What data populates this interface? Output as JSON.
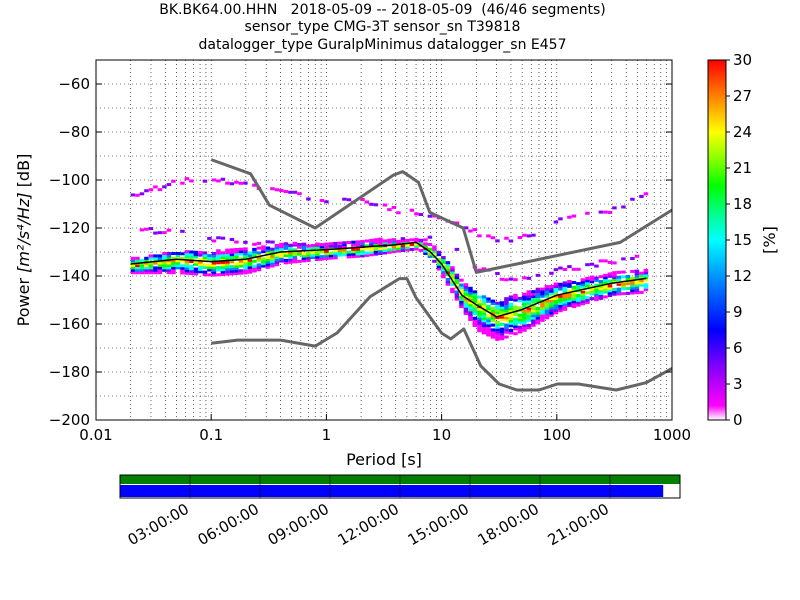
{
  "title": {
    "line1": "BK.BK64.00.HHN   2018-05-09 -- 2018-05-09  (46/46 segments)",
    "line2": "sensor_type CMG-3T sensor_sn T39818",
    "line3": "datalogger_type GuralpMinimus datalogger_sn E457"
  },
  "chart_data": {
    "type": "heatmap",
    "xlabel": "Period [s]",
    "xscale": "log",
    "xlim": [
      0.01,
      1000
    ],
    "xticks": [
      "0.01",
      "0.1",
      "1",
      "10",
      "100",
      "1000"
    ],
    "ylabel_prefix": "Power ",
    "ylabel_units": "[m²/s⁴/Hz]",
    "ylabel_suffix": " [dB]",
    "ylim": [
      -200,
      -50
    ],
    "yticks": [
      "−60",
      "−80",
      "−100",
      "−120",
      "−140",
      "−160",
      "−180",
      "−200"
    ],
    "grid": true,
    "colorbar": {
      "label": "[%]",
      "range": [
        0,
        30
      ],
      "ticks": [
        "0",
        "3",
        "6",
        "9",
        "12",
        "15",
        "18",
        "21",
        "24",
        "27",
        "30"
      ]
    },
    "nlnm": {
      "periods": [
        0.1,
        0.17,
        0.4,
        0.8,
        1.24,
        2.4,
        4.3,
        5.0,
        6.0,
        10.0,
        12.0,
        15.6,
        21.9,
        31.6,
        45.0,
        70.0,
        101.0,
        154.0,
        328.0,
        600.0,
        1000.0
      ],
      "db": [
        -168,
        -166.7,
        -166.7,
        -169.2,
        -163.7,
        -148.6,
        -141.1,
        -141.1,
        -149.0,
        -163.8,
        -166.2,
        -162.1,
        -177.5,
        -185.0,
        -187.5,
        -187.5,
        -185.0,
        -185.0,
        -187.5,
        -184.4,
        -178.5
      ]
    },
    "nhnm": {
      "periods": [
        0.1,
        0.22,
        0.32,
        0.8,
        3.8,
        4.6,
        6.3,
        7.9,
        15.4,
        20.0,
        354.8,
        1000.0
      ],
      "db": [
        -91.5,
        -97.4,
        -110.5,
        -120.0,
        -98.0,
        -96.5,
        -101.0,
        -113.5,
        -120.0,
        -138.5,
        -126.0,
        -112.5
      ]
    },
    "mode": {
      "periods": [
        0.02,
        0.05,
        0.1,
        0.2,
        0.4,
        1.0,
        2.0,
        4.0,
        6.0,
        8.0,
        10.0,
        15.0,
        20.0,
        30.0,
        50.0,
        100.0,
        300.0,
        600.0
      ],
      "db": [
        -135,
        -133,
        -134,
        -133,
        -130,
        -129,
        -128,
        -127,
        -126,
        -130,
        -135,
        -148,
        -152,
        -157,
        -154,
        -148,
        -143,
        -141
      ]
    },
    "percentile_bands": [
      {
        "name": "core",
        "periods": [
          0.02,
          0.05,
          0.1,
          0.2,
          0.4,
          1.0,
          2.0,
          4.0,
          6.0,
          8.0,
          10.0,
          15.0,
          20.0,
          30.0,
          50.0,
          100.0,
          300.0,
          600.0
        ],
        "low": [
          -138,
          -138,
          -139,
          -138,
          -134,
          -132,
          -131,
          -129,
          -128,
          -132,
          -140,
          -154,
          -162,
          -166,
          -162,
          -154,
          -147,
          -146
        ],
        "high": [
          -132,
          -129,
          -129,
          -128,
          -126,
          -126,
          -124,
          -124,
          -124,
          -126,
          -131,
          -142,
          -147,
          -150,
          -146,
          -142,
          -138,
          -137
        ]
      },
      {
        "name": "outliers_upper",
        "periods": [
          0.02,
          0.05,
          0.1,
          0.3,
          1.0,
          2.0,
          4.0,
          8.0,
          15.0,
          30.0,
          60.0,
          100.0,
          300.0,
          600.0
        ],
        "db": [
          -106,
          -100,
          -99,
          -103,
          -108,
          -108,
          -112,
          -114,
          -119,
          -125,
          -122,
          -116,
          -112,
          -104
        ]
      },
      {
        "name": "outliers_mid",
        "periods": [
          0.02,
          0.05,
          0.1,
          0.3,
          1.0,
          3.0,
          8.0,
          12.0,
          20.0,
          40.0,
          100.0,
          300.0,
          600.0
        ],
        "db": [
          -120,
          -121,
          -124,
          -126,
          -127,
          -126,
          -123,
          -128,
          -136,
          -142,
          -137,
          -133,
          -131
        ]
      }
    ]
  },
  "timeline": {
    "ticks": [
      "03:00:00",
      "06:00:00",
      "09:00:00",
      "12:00:00",
      "15:00:00",
      "18:00:00",
      "21:00:00"
    ],
    "coverage_fraction": 0.97,
    "green": "#007f00",
    "blue": "#0000ff"
  },
  "colors": {
    "reference_curves": "#666666",
    "mode_line": "#000000",
    "colormap": [
      "#ffffff",
      "#ff00ff",
      "#8000ff",
      "#0000ff",
      "#0080ff",
      "#00ffff",
      "#00ff80",
      "#00ff00",
      "#80ff00",
      "#ffff00",
      "#ff8000",
      "#ff0000"
    ]
  }
}
